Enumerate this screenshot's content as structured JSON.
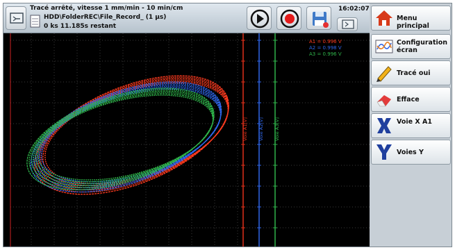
{
  "header": {
    "status_line1": "Tracé arrêté, vitesse 1 mm/min - 10 min/cm",
    "status_line2": "HDD\\FolderREC\\File_Record_ (1 µs)",
    "status_line3": "0 ks 11.185s restant",
    "time": "16:02:07"
  },
  "menu": {
    "items": [
      {
        "label": "Menu principal"
      },
      {
        "label": "Configuration écran"
      },
      {
        "label": "Tracé oui"
      },
      {
        "label": "Efface"
      },
      {
        "label": "Voie X A1"
      },
      {
        "label": "Voies Y"
      }
    ]
  },
  "plot": {
    "axis_labels": [
      "Voie A1[V]",
      "Voie A2[V]",
      "Voie A3[V]"
    ],
    "legend": [
      {
        "text": "A1 = 0.996 V",
        "color": "#ff3b1f"
      },
      {
        "text": "A2 = 0.998 V",
        "color": "#2f66e8"
      },
      {
        "text": "A3 = 0.996 V",
        "color": "#2fb34a"
      }
    ]
  },
  "colors": {
    "trace_a1": "#ff3b1f",
    "trace_a2": "#2f66e8",
    "trace_a3": "#2fb34a",
    "background": "#000000"
  }
}
